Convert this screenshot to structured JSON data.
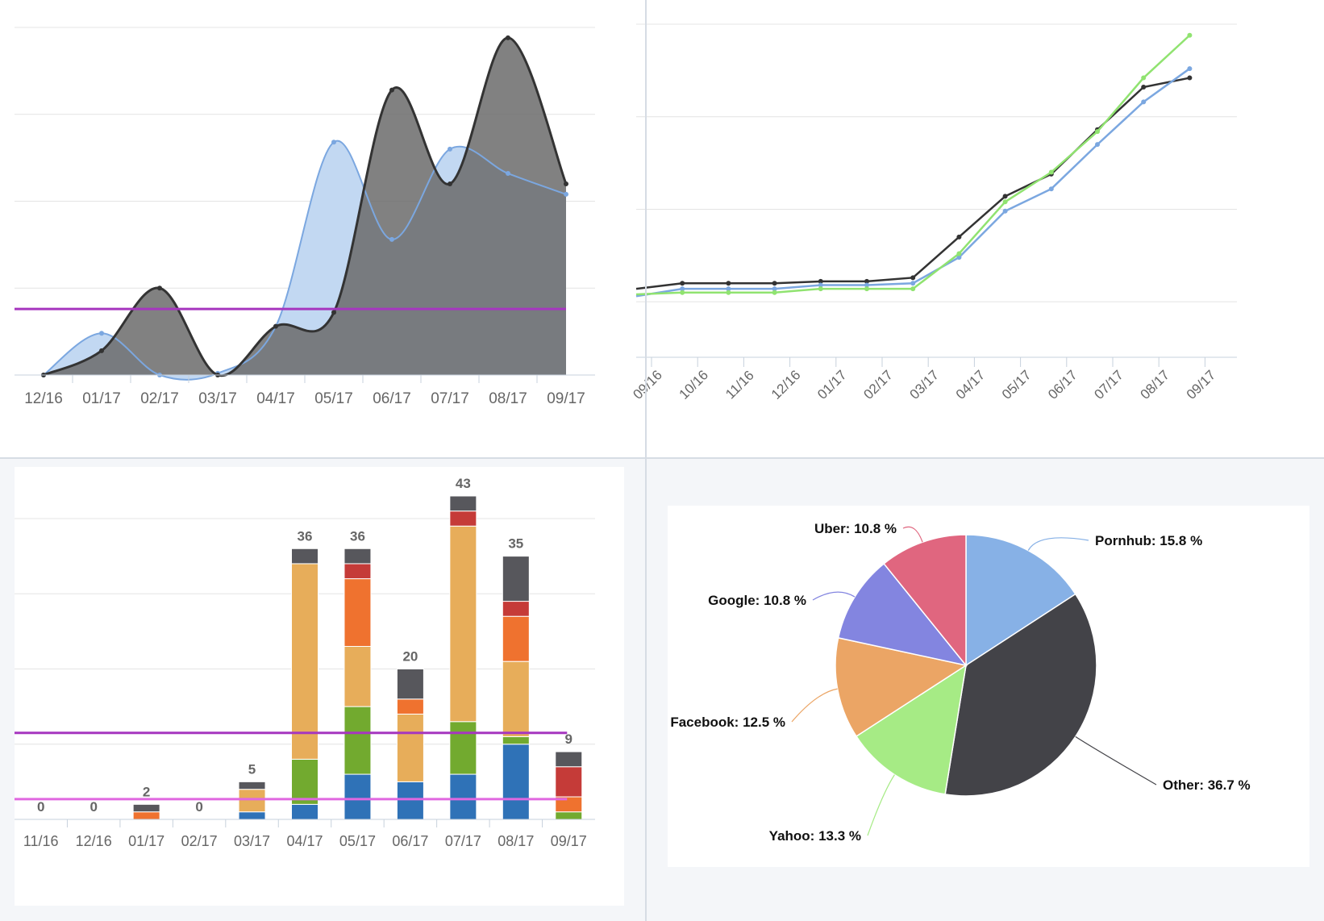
{
  "chart_data": [
    {
      "type": "area",
      "categories": [
        "12/16",
        "01/17",
        "02/17",
        "03/17",
        "04/17",
        "05/17",
        "06/17",
        "07/17",
        "08/17",
        "09/17"
      ],
      "series": [
        {
          "color": "#7ba7e0",
          "fill": "#c2d8f2",
          "values": [
            0,
            12,
            0,
            0.5,
            14,
            67,
            39,
            65,
            58,
            52
          ]
        },
        {
          "color": "#333333",
          "fill": "#6b6b6b",
          "values": [
            0,
            7,
            25,
            0,
            14,
            18,
            82,
            55,
            97,
            55
          ]
        }
      ],
      "ylim": [
        0,
        100
      ],
      "gridlines": [
        0,
        25,
        50,
        75,
        100
      ],
      "threshold": {
        "value": 19,
        "color": "#a636bf"
      },
      "grid": true
    },
    {
      "type": "line",
      "categories": [
        "09/16",
        "10/16",
        "11/16",
        "12/16",
        "01/17",
        "02/17",
        "03/17",
        "04/17",
        "05/17",
        "06/17",
        "07/17",
        "08/17",
        "09/17"
      ],
      "series": [
        {
          "color": "#333333",
          "values": [
            7,
            10,
            10,
            10,
            11,
            11,
            13,
            35,
            57,
            69,
            93,
            116,
            121
          ]
        },
        {
          "color": "#7ba7e0",
          "values": [
            3,
            7,
            7,
            7,
            9,
            9,
            10,
            24,
            49,
            61,
            85,
            108,
            126
          ]
        },
        {
          "color": "#90e370",
          "values": [
            4,
            5,
            5,
            5,
            7,
            7,
            7,
            26,
            54,
            70,
            92,
            121,
            144
          ]
        }
      ],
      "ylim": [
        -30,
        150
      ],
      "gridlines": [
        0,
        50,
        100,
        150
      ],
      "grid": true
    },
    {
      "type": "bar",
      "stacked": true,
      "categories": [
        "11/16",
        "12/16",
        "01/17",
        "02/17",
        "03/17",
        "04/17",
        "05/17",
        "06/17",
        "07/17",
        "08/17",
        "09/17"
      ],
      "totals": [
        "0",
        "0",
        "2",
        "0",
        "5",
        "36",
        "36",
        "20",
        "43",
        "35",
        "9"
      ],
      "series": [
        {
          "color": "#2f72b7",
          "values": [
            0,
            0,
            0,
            0,
            1,
            2,
            6,
            5,
            6,
            10,
            0
          ]
        },
        {
          "color": "#72aa2f",
          "values": [
            0,
            0,
            0,
            0,
            0,
            6,
            9,
            0,
            7,
            1,
            1
          ]
        },
        {
          "color": "#e7ad5a",
          "values": [
            0,
            0,
            0,
            0,
            3,
            26,
            8,
            9,
            26,
            10,
            0
          ]
        },
        {
          "color": "#ef722f",
          "values": [
            0,
            0,
            1,
            0,
            0,
            0,
            9,
            2,
            0,
            6,
            2
          ]
        },
        {
          "color": "#c53b38",
          "values": [
            0,
            0,
            0,
            0,
            0,
            0,
            2,
            0,
            2,
            2,
            4
          ]
        },
        {
          "color": "#57575c",
          "values": [
            0,
            0,
            1,
            0,
            1,
            2,
            2,
            4,
            2,
            6,
            2
          ]
        }
      ],
      "ylim": [
        0,
        43
      ],
      "gridlines": [
        0,
        10,
        20,
        30,
        40
      ],
      "thresholds": [
        {
          "value": 11.5,
          "color": "#a636bf"
        },
        {
          "value": 2.7,
          "color": "#e068e0"
        }
      ],
      "grid": true
    },
    {
      "type": "pie",
      "slices": [
        {
          "label": "Pornhub: 15.8 %",
          "value": 15.8,
          "color": "#87b1e6",
          "side": "right"
        },
        {
          "label": "Other: 36.7 %",
          "value": 36.7,
          "color": "#434348",
          "side": "right"
        },
        {
          "label": "Yahoo: 13.3 %",
          "value": 13.3,
          "color": "#a6eb85",
          "side": "left"
        },
        {
          "label": "Facebook: 12.5 %",
          "value": 12.5,
          "color": "#eba565",
          "side": "left"
        },
        {
          "label": "Google: 10.8 %",
          "value": 10.8,
          "color": "#8385e0",
          "side": "left"
        },
        {
          "label": "Uber: 10.8 %",
          "value": 10.8,
          "color": "#e0667f",
          "side": "left"
        }
      ]
    }
  ]
}
